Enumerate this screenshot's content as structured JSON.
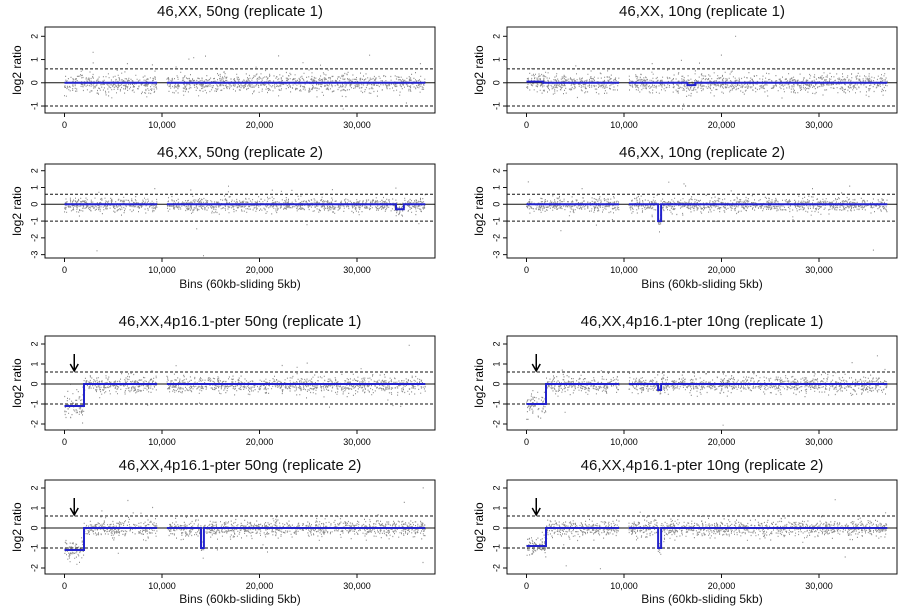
{
  "chart_data": [
    {
      "type": "scatter",
      "title": "46,XX, 50ng (replicate 1)",
      "xlabel": "",
      "ylabel": "log2 ratio",
      "ylim": [
        -1.3,
        2.4
      ],
      "xlim": [
        -2000,
        38000
      ],
      "yticks": [
        -1,
        0,
        1,
        2
      ],
      "xticks": [
        "0",
        "10,000",
        "20,000",
        "30,000"
      ],
      "thresholds": [
        0.6,
        -1.0
      ],
      "segments": [
        {
          "x": [
            0,
            9500
          ],
          "y": 0.0
        },
        {
          "x": [
            10500,
            37000
          ],
          "y": 0.0
        }
      ],
      "arrow": null
    },
    {
      "type": "scatter",
      "title": "46,XX, 10ng (replicate 1)",
      "xlabel": "",
      "ylabel": "log2 ratio",
      "ylim": [
        -1.3,
        2.4
      ],
      "xlim": [
        -2000,
        38000
      ],
      "yticks": [
        -1,
        0,
        1,
        2
      ],
      "xticks": [
        "0",
        "10,000",
        "20,000",
        "30,000"
      ],
      "thresholds": [
        0.6,
        -1.0
      ],
      "segments": [
        {
          "x": [
            0,
            1700
          ],
          "y": 0.05
        },
        {
          "x": [
            1700,
            9500
          ],
          "y": 0.0
        },
        {
          "x": [
            10500,
            16500
          ],
          "y": 0.0
        },
        {
          "x": [
            16500,
            17300
          ],
          "y": -0.1
        },
        {
          "x": [
            17300,
            37000
          ],
          "y": 0.0
        }
      ],
      "arrow": null
    },
    {
      "type": "scatter",
      "title": "46,XX, 50ng (replicate 2)",
      "xlabel": "Bins (60kb-sliding 5kb)",
      "ylabel": "log2 ratio",
      "ylim": [
        -3.2,
        2.4
      ],
      "xlim": [
        -2000,
        38000
      ],
      "yticks": [
        -3,
        -2,
        -1,
        0,
        1,
        2
      ],
      "xticks": [
        "0",
        "10,000",
        "20,000",
        "30,000"
      ],
      "thresholds": [
        0.6,
        -1.0
      ],
      "segments": [
        {
          "x": [
            0,
            9500
          ],
          "y": 0.0
        },
        {
          "x": [
            10500,
            34000
          ],
          "y": 0.0
        },
        {
          "x": [
            34000,
            34800
          ],
          "y": -0.3
        },
        {
          "x": [
            34800,
            37000
          ],
          "y": 0.0
        }
      ],
      "arrow": null
    },
    {
      "type": "scatter",
      "title": "46,XX, 10ng (replicate 2)",
      "xlabel": "Bins (60kb-sliding 5kb)",
      "ylabel": "log2 ratio",
      "ylim": [
        -3.2,
        2.4
      ],
      "xlim": [
        -2000,
        38000
      ],
      "yticks": [
        -3,
        -2,
        -1,
        0,
        1,
        2
      ],
      "xticks": [
        "0",
        "10,000",
        "20,000",
        "30,000"
      ],
      "thresholds": [
        0.6,
        -1.0
      ],
      "segments": [
        {
          "x": [
            0,
            9500
          ],
          "y": 0.0
        },
        {
          "x": [
            10500,
            13500
          ],
          "y": 0.0
        },
        {
          "x": [
            13500,
            13800
          ],
          "y": -1.0
        },
        {
          "x": [
            13800,
            37000
          ],
          "y": 0.0
        }
      ],
      "arrow": null
    },
    {
      "type": "scatter",
      "title": "46,XX,4p16.1-pter 50ng (replicate 1)",
      "xlabel": "",
      "ylabel": "log2 ratio",
      "ylim": [
        -2.3,
        2.4
      ],
      "xlim": [
        -2000,
        38000
      ],
      "yticks": [
        -2,
        -1,
        0,
        1,
        2
      ],
      "xticks": [
        "0",
        "10,000",
        "20,000",
        "30,000"
      ],
      "thresholds": [
        0.6,
        -1.0
      ],
      "segments": [
        {
          "x": [
            0,
            2000
          ],
          "y": -1.1
        },
        {
          "x": [
            2000,
            9500
          ],
          "y": 0.0
        },
        {
          "x": [
            10500,
            37000
          ],
          "y": 0.0
        }
      ],
      "arrow": 1000
    },
    {
      "type": "scatter",
      "title": "46,XX,4p16.1-pter 10ng  (replicate 1)",
      "xlabel": "",
      "ylabel": "log2 ratio",
      "ylim": [
        -2.3,
        2.4
      ],
      "xlim": [
        -2000,
        38000
      ],
      "yticks": [
        -2,
        -1,
        0,
        1,
        2
      ],
      "xticks": [
        "0",
        "10,000",
        "20,000",
        "30,000"
      ],
      "thresholds": [
        0.6,
        -1.0
      ],
      "segments": [
        {
          "x": [
            0,
            2000
          ],
          "y": -1.0
        },
        {
          "x": [
            2000,
            9500
          ],
          "y": 0.0
        },
        {
          "x": [
            10500,
            13500
          ],
          "y": 0.0
        },
        {
          "x": [
            13500,
            13800
          ],
          "y": -0.3
        },
        {
          "x": [
            13800,
            37000
          ],
          "y": 0.0
        }
      ],
      "arrow": 1000
    },
    {
      "type": "scatter",
      "title": "46,XX,4p16.1-pter 50ng  (replicate 2)",
      "xlabel": "Bins (60kb-sliding 5kb)",
      "ylabel": "log2 ratio",
      "ylim": [
        -2.3,
        2.4
      ],
      "xlim": [
        -2000,
        38000
      ],
      "yticks": [
        -2,
        -1,
        0,
        1,
        2
      ],
      "xticks": [
        "0",
        "10,000",
        "20,000",
        "30,000"
      ],
      "thresholds": [
        0.6,
        -1.0
      ],
      "segments": [
        {
          "x": [
            0,
            2000
          ],
          "y": -1.1
        },
        {
          "x": [
            2000,
            9500
          ],
          "y": 0.0
        },
        {
          "x": [
            10500,
            14000
          ],
          "y": 0.0
        },
        {
          "x": [
            14000,
            14300
          ],
          "y": -1.0
        },
        {
          "x": [
            14300,
            37000
          ],
          "y": 0.0
        }
      ],
      "arrow": 1000
    },
    {
      "type": "scatter",
      "title": "46,XX,4p16.1-pter 10ng  (replicate 2)",
      "xlabel": "Bins (60kb-sliding 5kb)",
      "ylabel": "log2 ratio",
      "ylim": [
        -2.3,
        2.4
      ],
      "xlim": [
        -2000,
        38000
      ],
      "yticks": [
        -2,
        -1,
        0,
        1,
        2
      ],
      "xticks": [
        "0",
        "10,000",
        "20,000",
        "30,000"
      ],
      "thresholds": [
        0.6,
        -1.0
      ],
      "segments": [
        {
          "x": [
            0,
            2000
          ],
          "y": -0.9
        },
        {
          "x": [
            2000,
            9500
          ],
          "y": 0.0
        },
        {
          "x": [
            10500,
            13500
          ],
          "y": 0.0
        },
        {
          "x": [
            13500,
            13800
          ],
          "y": -1.0
        },
        {
          "x": [
            13800,
            37000
          ],
          "y": 0.0
        }
      ],
      "arrow": 1000
    }
  ],
  "colors": {
    "points": "#7a7a7a",
    "segment": "#2222cc",
    "axis": "#111111",
    "threshold": "#111111"
  }
}
